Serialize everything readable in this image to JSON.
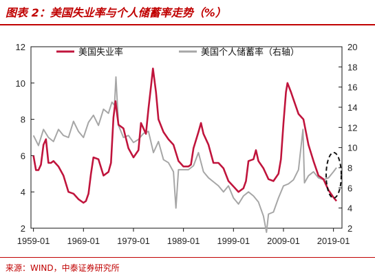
{
  "figure_title": "图表 2：美国失业率与个人储蓄率走势（%）",
  "source_note": "来源：WIND，中泰证券研究所",
  "chart_data": {
    "type": "line",
    "title": "",
    "xlabel": "",
    "ylabel": "",
    "x_ticks": [
      "1959-01",
      "1969-01",
      "1979-01",
      "1989-01",
      "1999-01",
      "2009-01",
      "2019-01"
    ],
    "ylim_left": [
      2,
      12
    ],
    "yticks_left": [
      2,
      4,
      6,
      8,
      10,
      12
    ],
    "ylim_right": [
      2,
      20
    ],
    "yticks_right": [
      2,
      4,
      6,
      8,
      10,
      12,
      14,
      16,
      18,
      20
    ],
    "grid": false,
    "legend_position": "top",
    "highlight": "dashed ellipse around 2018-2019 values",
    "series": [
      {
        "name": "美国失业率",
        "axis": "left",
        "color": "#c0143c",
        "points": [
          [
            1959.0,
            6.0
          ],
          [
            1959.5,
            5.2
          ],
          [
            1960.0,
            5.2
          ],
          [
            1960.5,
            5.5
          ],
          [
            1961.0,
            6.6
          ],
          [
            1961.5,
            6.9
          ],
          [
            1962.0,
            5.6
          ],
          [
            1962.5,
            5.6
          ],
          [
            1963.0,
            5.7
          ],
          [
            1964.0,
            5.4
          ],
          [
            1965.0,
            4.9
          ],
          [
            1966.0,
            4.0
          ],
          [
            1967.0,
            3.9
          ],
          [
            1968.0,
            3.6
          ],
          [
            1969.0,
            3.4
          ],
          [
            1969.5,
            3.5
          ],
          [
            1970.0,
            3.9
          ],
          [
            1970.5,
            5.0
          ],
          [
            1971.0,
            5.9
          ],
          [
            1972.0,
            5.8
          ],
          [
            1973.0,
            4.9
          ],
          [
            1974.0,
            5.1
          ],
          [
            1974.5,
            5.6
          ],
          [
            1975.0,
            8.1
          ],
          [
            1975.4,
            9.0
          ],
          [
            1976.0,
            7.7
          ],
          [
            1977.0,
            7.5
          ],
          [
            1978.0,
            6.4
          ],
          [
            1979.0,
            5.9
          ],
          [
            1980.0,
            6.3
          ],
          [
            1980.5,
            7.8
          ],
          [
            1981.0,
            7.5
          ],
          [
            1981.5,
            7.2
          ],
          [
            1982.0,
            8.6
          ],
          [
            1982.5,
            9.8
          ],
          [
            1982.9,
            10.8
          ],
          [
            1983.5,
            9.5
          ],
          [
            1984.0,
            8.0
          ],
          [
            1985.0,
            7.3
          ],
          [
            1986.0,
            6.9
          ],
          [
            1987.0,
            6.6
          ],
          [
            1988.0,
            5.7
          ],
          [
            1989.0,
            5.4
          ],
          [
            1990.0,
            5.4
          ],
          [
            1990.5,
            5.5
          ],
          [
            1991.0,
            6.4
          ],
          [
            1992.0,
            7.3
          ],
          [
            1992.5,
            7.8
          ],
          [
            1993.0,
            7.2
          ],
          [
            1994.0,
            6.6
          ],
          [
            1995.0,
            5.6
          ],
          [
            1996.0,
            5.6
          ],
          [
            1997.0,
            5.3
          ],
          [
            1998.0,
            4.6
          ],
          [
            1999.0,
            4.3
          ],
          [
            2000.0,
            4.0
          ],
          [
            2001.0,
            4.2
          ],
          [
            2001.5,
            4.6
          ],
          [
            2002.0,
            5.7
          ],
          [
            2003.0,
            5.8
          ],
          [
            2003.5,
            6.3
          ],
          [
            2004.0,
            5.7
          ],
          [
            2005.0,
            5.3
          ],
          [
            2006.0,
            4.7
          ],
          [
            2007.0,
            4.6
          ],
          [
            2008.0,
            5.0
          ],
          [
            2008.5,
            5.8
          ],
          [
            2009.0,
            7.8
          ],
          [
            2009.5,
            9.5
          ],
          [
            2009.8,
            10.0
          ],
          [
            2010.5,
            9.5
          ],
          [
            2011.0,
            9.1
          ],
          [
            2012.0,
            8.3
          ],
          [
            2013.0,
            8.0
          ],
          [
            2014.0,
            6.6
          ],
          [
            2015.0,
            5.7
          ],
          [
            2016.0,
            4.9
          ],
          [
            2017.0,
            4.7
          ],
          [
            2018.0,
            4.1
          ],
          [
            2019.0,
            3.7
          ],
          [
            2019.6,
            3.5
          ]
        ]
      },
      {
        "name": "美国个人储蓄率（右轴）",
        "axis": "right",
        "color": "#a6a6a6",
        "points": [
          [
            1959.0,
            11.2
          ],
          [
            1960.0,
            10.2
          ],
          [
            1961.0,
            11.8
          ],
          [
            1962.0,
            11.0
          ],
          [
            1963.0,
            10.6
          ],
          [
            1964.0,
            11.8
          ],
          [
            1965.0,
            11.2
          ],
          [
            1966.0,
            11.0
          ],
          [
            1967.0,
            12.6
          ],
          [
            1968.0,
            11.6
          ],
          [
            1969.0,
            11.0
          ],
          [
            1970.0,
            12.5
          ],
          [
            1971.0,
            13.2
          ],
          [
            1972.0,
            12.2
          ],
          [
            1973.0,
            13.8
          ],
          [
            1974.0,
            13.4
          ],
          [
            1974.7,
            14.5
          ],
          [
            1975.2,
            14.2
          ],
          [
            1975.5,
            17.0
          ],
          [
            1976.0,
            12.2
          ],
          [
            1977.0,
            11.0
          ],
          [
            1978.0,
            11.2
          ],
          [
            1979.0,
            10.5
          ],
          [
            1980.0,
            10.8
          ],
          [
            1981.0,
            11.4
          ],
          [
            1982.0,
            11.6
          ],
          [
            1983.0,
            9.5
          ],
          [
            1984.0,
            10.6
          ],
          [
            1985.0,
            8.8
          ],
          [
            1986.0,
            8.5
          ],
          [
            1987.0,
            7.6
          ],
          [
            1987.5,
            4.0
          ],
          [
            1988.0,
            7.8
          ],
          [
            1989.0,
            7.8
          ],
          [
            1990.0,
            7.8
          ],
          [
            1991.0,
            8.2
          ],
          [
            1992.0,
            9.5
          ],
          [
            1993.0,
            7.6
          ],
          [
            1994.0,
            7.0
          ],
          [
            1995.0,
            6.6
          ],
          [
            1996.0,
            6.2
          ],
          [
            1997.0,
            5.6
          ],
          [
            1998.0,
            6.2
          ],
          [
            1999.0,
            5.0
          ],
          [
            2000.0,
            4.4
          ],
          [
            2001.0,
            5.2
          ],
          [
            2002.0,
            5.6
          ],
          [
            2003.0,
            5.2
          ],
          [
            2004.0,
            4.6
          ],
          [
            2005.0,
            3.2
          ],
          [
            2005.6,
            1.6
          ],
          [
            2006.0,
            3.4
          ],
          [
            2007.0,
            3.6
          ],
          [
            2008.0,
            5.0
          ],
          [
            2009.0,
            6.2
          ],
          [
            2010.0,
            6.4
          ],
          [
            2011.0,
            6.8
          ],
          [
            2012.0,
            7.8
          ],
          [
            2012.9,
            11.8
          ],
          [
            2013.2,
            6.5
          ],
          [
            2014.0,
            7.2
          ],
          [
            2015.0,
            7.6
          ],
          [
            2016.0,
            7.0
          ],
          [
            2017.0,
            6.8
          ],
          [
            2018.0,
            7.0
          ],
          [
            2019.0,
            7.6
          ],
          [
            2019.6,
            8.0
          ]
        ]
      }
    ]
  }
}
